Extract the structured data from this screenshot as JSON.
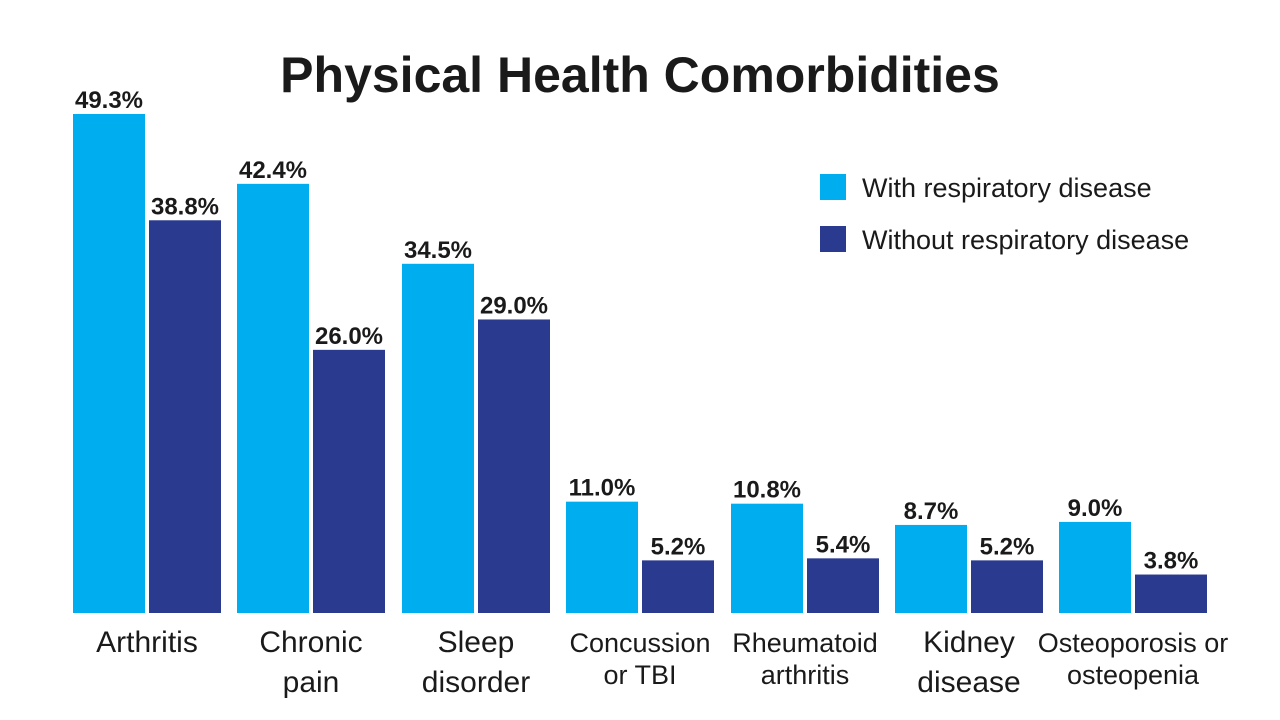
{
  "chart_data": {
    "type": "bar",
    "title": "Physical Health Comorbidities",
    "xlabel": "",
    "ylabel": "",
    "ylim": [
      0,
      50
    ],
    "grid": false,
    "legend_placement": "top-right",
    "categories": [
      [
        "Arthritis"
      ],
      [
        "Chronic",
        "pain"
      ],
      [
        "Sleep",
        "disorder"
      ],
      [
        "Concussion",
        "or TBI"
      ],
      [
        "Rheumatoid",
        "arthritis"
      ],
      [
        "Kidney",
        "disease"
      ],
      [
        "Osteoporosis or",
        "osteopenia"
      ]
    ],
    "series": [
      {
        "name": "With respiratory disease",
        "color": "#00adef",
        "values": [
          49.3,
          42.4,
          34.5,
          11.0,
          10.8,
          8.7,
          9.0
        ],
        "labels": [
          "49.3%",
          "42.4%",
          "34.5%",
          "11.0%",
          "10.8%",
          "8.7%",
          "9.0%"
        ]
      },
      {
        "name": "Without respiratory disease",
        "color": "#293a8f",
        "values": [
          38.8,
          26.0,
          29.0,
          5.2,
          5.4,
          5.2,
          3.8
        ],
        "labels": [
          "38.8%",
          "26.0%",
          "29.0%",
          "5.2%",
          "5.4%",
          "5.2%",
          "3.8%"
        ]
      }
    ]
  }
}
